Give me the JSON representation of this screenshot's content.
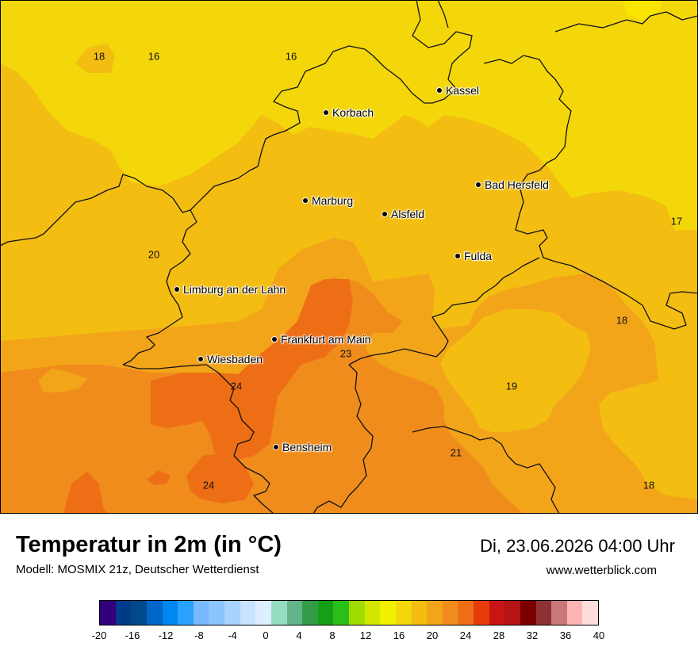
{
  "map": {
    "region": "Hessen",
    "colors": {
      "c16_18": "#f3d70a",
      "c18_20": "#f3bd12",
      "c20_22": "#f3a51a",
      "c22_24": "#f08c1c",
      "c24_26": "#ee6e16",
      "border": "#111111"
    },
    "cities": [
      {
        "name": "Kassel"
      },
      {
        "name": "Korbach"
      },
      {
        "name": "Bad Hersfeld"
      },
      {
        "name": "Marburg"
      },
      {
        "name": "Alsfeld"
      },
      {
        "name": "Fulda"
      },
      {
        "name": "Limburg an der Lahn"
      },
      {
        "name": "Frankfurt am Main"
      },
      {
        "name": "Wiesbaden"
      },
      {
        "name": "Bensheim"
      }
    ],
    "temperature_labels": [
      "18",
      "16",
      "16",
      "17",
      "20",
      "18",
      "23",
      "24",
      "19",
      "21",
      "24",
      "18"
    ]
  },
  "header": {
    "title": "Temperatur in 2m (in °C)",
    "subtitle": "Modell: MOSMIX 21z, Deutscher Wetterdienst",
    "datetime": "Di, 23.06.2026 04:00 Uhr",
    "website": "www.wetterblick.com"
  },
  "legend": {
    "colors": [
      "#32007a",
      "#003a88",
      "#004a8c",
      "#0066c8",
      "#0088f0",
      "#2aa0ff",
      "#78b8ff",
      "#8cc4ff",
      "#a8d2ff",
      "#c8e2ff",
      "#dceeff",
      "#96dcc0",
      "#64b48a",
      "#329c46",
      "#14a014",
      "#28c018",
      "#a0dc00",
      "#d2e600",
      "#f0f000",
      "#f3d70a",
      "#f3bd12",
      "#f3a51a",
      "#f08c1c",
      "#ee6e16",
      "#e63c0a",
      "#c81414",
      "#b41414",
      "#7a0000",
      "#8c3232",
      "#c87878",
      "#ffb4b4",
      "#ffdcdc"
    ],
    "ticks": [
      "-20",
      "-16",
      "-12",
      "-8",
      "-4",
      "0",
      "4",
      "8",
      "12",
      "16",
      "20",
      "24",
      "28",
      "32",
      "36",
      "40"
    ]
  }
}
